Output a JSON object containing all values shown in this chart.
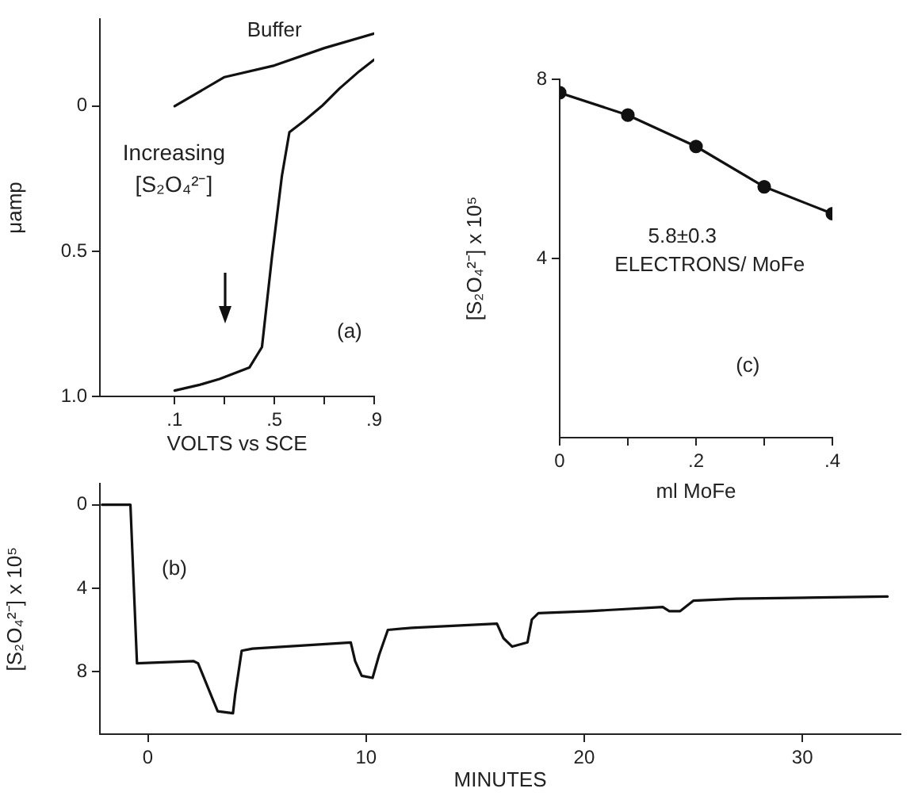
{
  "chart_data": [
    {
      "type": "line",
      "xlabel": "VOLTS vs SCE",
      "ylabel": "μamp",
      "xlim": [
        -0.2,
        0.9
      ],
      "ylim": [
        1.0,
        -0.3
      ],
      "xticks": [
        {
          "value": 0.1,
          "label": ".1"
        },
        {
          "value": 0.3,
          "label": null
        },
        {
          "value": 0.5,
          "label": ".5"
        },
        {
          "value": 0.7,
          "label": null
        },
        {
          "value": 0.9,
          "label": ".9"
        }
      ],
      "yticks": [
        0,
        {
          "value": 0.5,
          "label": "0.5"
        },
        {
          "value": 1.0,
          "label": "1.0"
        }
      ],
      "grid": false,
      "legend": false,
      "series": [
        {
          "name": "Buffer",
          "color": "#111111",
          "x": [
            0.1,
            0.3,
            0.5,
            0.7,
            0.9
          ],
          "values": [
            0.0,
            -0.1,
            -0.14,
            -0.2,
            -0.25
          ]
        },
        {
          "color": "#111111",
          "x": [
            0.1,
            0.2,
            0.28,
            0.4,
            0.45,
            0.49,
            0.53,
            0.56,
            0.62,
            0.69,
            0.76,
            0.84,
            0.9
          ],
          "values": [
            0.98,
            0.96,
            0.94,
            0.9,
            0.83,
            0.52,
            0.24,
            0.09,
            0.05,
            0.0,
            -0.06,
            -0.12,
            -0.16
          ]
        }
      ],
      "annotations": [
        "Increasing [S₂O₄²⁻]",
        "(a)"
      ]
    },
    {
      "type": "line",
      "xlabel": "ml MoFe",
      "ylabel": "[S₂O₄²⁻] x 10⁵",
      "xlim": [
        0,
        0.4
      ],
      "ylim": [
        0,
        8
      ],
      "xticks": [
        0,
        {
          "value": 0.1,
          "label": null
        },
        {
          "value": 0.2,
          "label": ".2"
        },
        {
          "value": 0.3,
          "label": null
        },
        {
          "value": 0.4,
          "label": ".4"
        }
      ],
      "yticks": [
        4,
        8
      ],
      "grid": false,
      "legend": false,
      "marker": "circle",
      "series": [
        {
          "color": "#111111",
          "x": [
            0,
            0.1,
            0.2,
            0.3,
            0.4
          ],
          "values": [
            7.7,
            7.2,
            6.5,
            5.6,
            5.0
          ]
        }
      ],
      "annotations": [
        "5.8±0.3",
        "ELECTRONS/ MoFe",
        "(c)"
      ]
    },
    {
      "type": "line",
      "xlabel": "MINUTES",
      "ylabel": "[S₂O₄²⁻] x 10⁵",
      "xlim": [
        -2.2,
        34.5
      ],
      "ylim": [
        11,
        -1
      ],
      "xticks": [
        0,
        10,
        20,
        30
      ],
      "yticks": [
        0,
        4,
        8
      ],
      "grid": false,
      "legend": false,
      "series": [
        {
          "color": "#111111",
          "x": [
            -2.1,
            -0.8,
            -0.5,
            2.1,
            2.3,
            3.0,
            3.2,
            3.9,
            4.0,
            4.3,
            4.8,
            9.3,
            9.5,
            9.8,
            10.3,
            10.6,
            11.0,
            12.1,
            16.0,
            16.3,
            16.7,
            17.4,
            17.6,
            17.9,
            20.2,
            23.6,
            23.9,
            24.4,
            25.0,
            27.0,
            33.9
          ],
          "values": [
            0.0,
            0.0,
            7.6,
            7.5,
            7.6,
            9.4,
            9.9,
            10.0,
            9.1,
            7.0,
            6.9,
            6.6,
            7.5,
            8.2,
            8.3,
            7.2,
            6.0,
            5.9,
            5.7,
            6.4,
            6.8,
            6.6,
            5.5,
            5.2,
            5.1,
            4.9,
            5.1,
            5.1,
            4.6,
            4.5,
            4.4
          ]
        }
      ],
      "annotations": [
        "(b)"
      ]
    }
  ]
}
